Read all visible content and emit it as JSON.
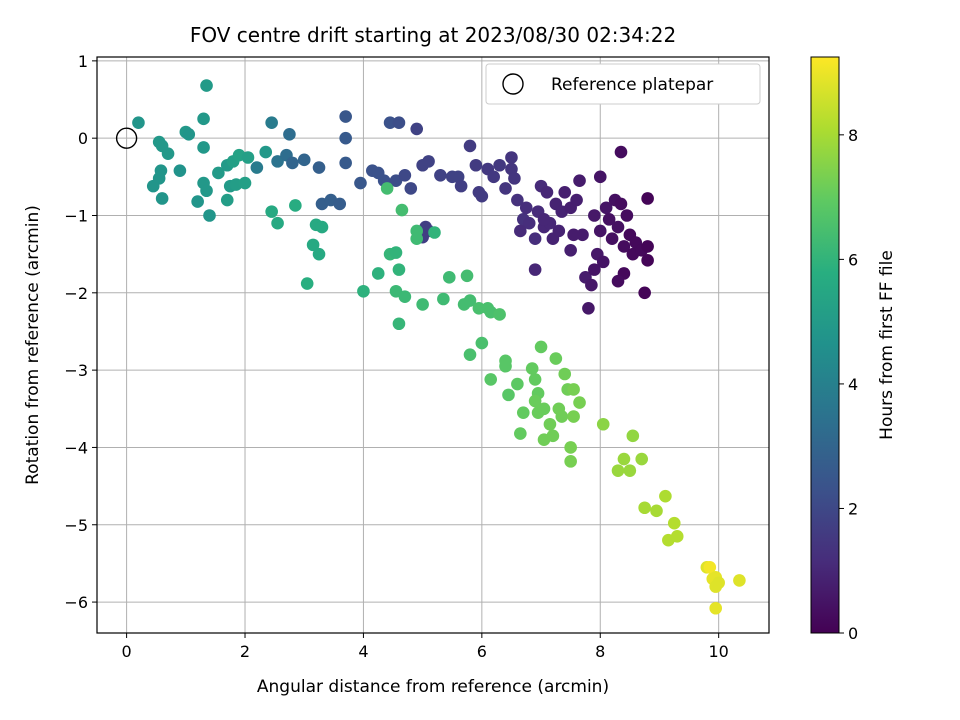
{
  "chart_data": {
    "type": "scatter",
    "title": "FOV centre drift starting at 2023/08/30 02:34:22",
    "xlabel": "Angular distance from reference (arcmin)",
    "ylabel": "Rotation from reference (arcmin)",
    "colorbar_label": "Hours from first FF file",
    "colormap": "viridis",
    "xlim": [
      -0.5,
      10.85
    ],
    "ylim": [
      -6.4,
      1.05
    ],
    "xticks": [
      0,
      2,
      4,
      6,
      8,
      10
    ],
    "yticks": [
      1,
      0,
      -1,
      -2,
      -3,
      -4,
      -5,
      -6
    ],
    "colorbar_range": [
      0,
      9.25
    ],
    "colorbar_ticks": [
      0,
      2,
      4,
      6,
      8
    ],
    "grid": true,
    "legend": {
      "placement": "top-right",
      "entries": [
        "Reference platepar"
      ]
    },
    "reference_point": {
      "x": 0,
      "y": 0,
      "label": "Reference platepar"
    },
    "points": [
      {
        "x": 0.2,
        "y": 0.2,
        "h": 4.8
      },
      {
        "x": 0.55,
        "y": -0.05,
        "h": 4.9
      },
      {
        "x": 0.6,
        "y": -0.1,
        "h": 4.9
      },
      {
        "x": 0.7,
        "y": -0.2,
        "h": 4.9
      },
      {
        "x": 0.58,
        "y": -0.42,
        "h": 4.8
      },
      {
        "x": 0.55,
        "y": -0.52,
        "h": 4.8
      },
      {
        "x": 0.45,
        "y": -0.62,
        "h": 4.8
      },
      {
        "x": 0.6,
        "y": -0.78,
        "h": 4.8
      },
      {
        "x": 0.9,
        "y": -0.42,
        "h": 4.7
      },
      {
        "x": 1.0,
        "y": 0.08,
        "h": 4.9
      },
      {
        "x": 1.05,
        "y": 0.05,
        "h": 4.8
      },
      {
        "x": 1.3,
        "y": 0.25,
        "h": 4.9
      },
      {
        "x": 1.35,
        "y": 0.68,
        "h": 5.0
      },
      {
        "x": 1.3,
        "y": -0.12,
        "h": 4.9
      },
      {
        "x": 1.3,
        "y": -0.58,
        "h": 4.9
      },
      {
        "x": 1.35,
        "y": -0.68,
        "h": 4.9
      },
      {
        "x": 1.2,
        "y": -0.82,
        "h": 4.8
      },
      {
        "x": 1.4,
        "y": -1.0,
        "h": 4.8
      },
      {
        "x": 1.55,
        "y": -0.45,
        "h": 5.0
      },
      {
        "x": 1.7,
        "y": -0.35,
        "h": 5.0
      },
      {
        "x": 1.75,
        "y": -0.62,
        "h": 5.0
      },
      {
        "x": 1.7,
        "y": -0.8,
        "h": 5.1
      },
      {
        "x": 1.85,
        "y": -0.6,
        "h": 5.1
      },
      {
        "x": 1.8,
        "y": -0.3,
        "h": 5.2
      },
      {
        "x": 1.9,
        "y": -0.22,
        "h": 5.3
      },
      {
        "x": 2.0,
        "y": -0.58,
        "h": 5.2
      },
      {
        "x": 2.05,
        "y": -0.25,
        "h": 5.2
      },
      {
        "x": 2.2,
        "y": -0.38,
        "h": 3.8
      },
      {
        "x": 2.45,
        "y": 0.2,
        "h": 3.8
      },
      {
        "x": 2.55,
        "y": -0.3,
        "h": 3.5
      },
      {
        "x": 2.7,
        "y": -0.22,
        "h": 3.3
      },
      {
        "x": 2.75,
        "y": 0.05,
        "h": 3.3
      },
      {
        "x": 2.8,
        "y": -0.32,
        "h": 3.0
      },
      {
        "x": 3.0,
        "y": -0.28,
        "h": 3.0
      },
      {
        "x": 3.25,
        "y": -0.38,
        "h": 2.8
      },
      {
        "x": 3.3,
        "y": -0.85,
        "h": 2.8
      },
      {
        "x": 3.45,
        "y": -0.8,
        "h": 2.8
      },
      {
        "x": 3.6,
        "y": -0.85,
        "h": 2.7
      },
      {
        "x": 3.7,
        "y": -0.32,
        "h": 2.6
      },
      {
        "x": 3.7,
        "y": 0.0,
        "h": 2.6
      },
      {
        "x": 3.7,
        "y": 0.28,
        "h": 2.5
      },
      {
        "x": 3.95,
        "y": -0.58,
        "h": 2.5
      },
      {
        "x": 4.15,
        "y": -0.42,
        "h": 2.3
      },
      {
        "x": 4.25,
        "y": -0.45,
        "h": 2.3
      },
      {
        "x": 4.35,
        "y": -0.55,
        "h": 2.3
      },
      {
        "x": 4.45,
        "y": 0.2,
        "h": 2.3
      },
      {
        "x": 4.6,
        "y": 0.2,
        "h": 2.2
      },
      {
        "x": 4.55,
        "y": -0.55,
        "h": 2.2
      },
      {
        "x": 4.7,
        "y": -0.48,
        "h": 2.0
      },
      {
        "x": 4.8,
        "y": -0.65,
        "h": 2.0
      },
      {
        "x": 4.9,
        "y": 0.12,
        "h": 1.8
      },
      {
        "x": 5.0,
        "y": -0.35,
        "h": 1.8
      },
      {
        "x": 5.1,
        "y": -0.3,
        "h": 1.8
      },
      {
        "x": 5.05,
        "y": -1.15,
        "h": 1.7
      },
      {
        "x": 5.1,
        "y": -1.2,
        "h": 1.7
      },
      {
        "x": 5.0,
        "y": -1.28,
        "h": 1.7
      },
      {
        "x": 5.3,
        "y": -0.48,
        "h": 1.8
      },
      {
        "x": 5.5,
        "y": -0.5,
        "h": 1.8
      },
      {
        "x": 5.6,
        "y": -0.5,
        "h": 1.8
      },
      {
        "x": 5.65,
        "y": -0.62,
        "h": 1.7
      },
      {
        "x": 5.8,
        "y": -0.1,
        "h": 1.6
      },
      {
        "x": 5.9,
        "y": -0.35,
        "h": 1.6
      },
      {
        "x": 5.95,
        "y": -0.7,
        "h": 1.6
      },
      {
        "x": 6.0,
        "y": -0.75,
        "h": 1.6
      },
      {
        "x": 6.1,
        "y": -0.4,
        "h": 1.5
      },
      {
        "x": 6.2,
        "y": -0.5,
        "h": 1.5
      },
      {
        "x": 6.3,
        "y": -0.35,
        "h": 1.5
      },
      {
        "x": 6.4,
        "y": -0.65,
        "h": 1.4
      },
      {
        "x": 6.5,
        "y": -0.4,
        "h": 1.4
      },
      {
        "x": 6.55,
        "y": -0.52,
        "h": 1.4
      },
      {
        "x": 6.6,
        "y": -0.8,
        "h": 1.3
      },
      {
        "x": 6.7,
        "y": -1.05,
        "h": 1.3
      },
      {
        "x": 6.8,
        "y": -1.1,
        "h": 1.2
      },
      {
        "x": 6.9,
        "y": -1.3,
        "h": 1.2
      },
      {
        "x": 6.95,
        "y": -0.95,
        "h": 1.1
      },
      {
        "x": 7.0,
        "y": -0.62,
        "h": 1.1
      },
      {
        "x": 7.05,
        "y": -1.15,
        "h": 1.0
      },
      {
        "x": 7.1,
        "y": -0.7,
        "h": 1.0
      },
      {
        "x": 7.15,
        "y": -1.1,
        "h": 1.0
      },
      {
        "x": 7.2,
        "y": -1.3,
        "h": 0.9
      },
      {
        "x": 7.25,
        "y": -0.85,
        "h": 0.9
      },
      {
        "x": 6.5,
        "y": -0.25,
        "h": 1.4
      },
      {
        "x": 6.65,
        "y": -1.2,
        "h": 1.1
      },
      {
        "x": 6.9,
        "y": -1.7,
        "h": 1.0
      },
      {
        "x": 7.3,
        "y": -1.2,
        "h": 0.9
      },
      {
        "x": 7.35,
        "y": -0.95,
        "h": 0.9
      },
      {
        "x": 7.4,
        "y": -0.7,
        "h": 0.8
      },
      {
        "x": 7.5,
        "y": -0.9,
        "h": 0.8
      },
      {
        "x": 7.5,
        "y": -1.45,
        "h": 0.8
      },
      {
        "x": 7.6,
        "y": -0.8,
        "h": 0.8
      },
      {
        "x": 7.65,
        "y": -0.55,
        "h": 0.7
      },
      {
        "x": 7.7,
        "y": -1.25,
        "h": 0.7
      },
      {
        "x": 7.75,
        "y": -1.8,
        "h": 0.7
      },
      {
        "x": 7.8,
        "y": -2.2,
        "h": 0.6
      },
      {
        "x": 7.85,
        "y": -1.9,
        "h": 0.6
      },
      {
        "x": 7.9,
        "y": -1.0,
        "h": 0.6
      },
      {
        "x": 7.95,
        "y": -1.5,
        "h": 0.6
      },
      {
        "x": 8.0,
        "y": -1.2,
        "h": 0.5
      },
      {
        "x": 8.0,
        "y": -0.5,
        "h": 0.5
      },
      {
        "x": 8.05,
        "y": -1.6,
        "h": 0.5
      },
      {
        "x": 8.1,
        "y": -0.9,
        "h": 0.5
      },
      {
        "x": 8.15,
        "y": -1.05,
        "h": 0.4
      },
      {
        "x": 8.2,
        "y": -1.3,
        "h": 0.4
      },
      {
        "x": 8.25,
        "y": -0.8,
        "h": 0.4
      },
      {
        "x": 8.3,
        "y": -1.15,
        "h": 0.4
      },
      {
        "x": 8.35,
        "y": -0.85,
        "h": 0.3
      },
      {
        "x": 8.35,
        "y": -0.18,
        "h": 0.3
      },
      {
        "x": 8.4,
        "y": -1.4,
        "h": 0.3
      },
      {
        "x": 8.45,
        "y": -1.0,
        "h": 0.3
      },
      {
        "x": 8.5,
        "y": -1.25,
        "h": 0.2
      },
      {
        "x": 8.55,
        "y": -1.5,
        "h": 0.2
      },
      {
        "x": 8.6,
        "y": -1.35,
        "h": 0.2
      },
      {
        "x": 8.7,
        "y": -1.45,
        "h": 0.2
      },
      {
        "x": 8.75,
        "y": -2.0,
        "h": 0.1
      },
      {
        "x": 8.8,
        "y": -0.78,
        "h": 0.1
      },
      {
        "x": 8.8,
        "y": -1.4,
        "h": 0.1
      },
      {
        "x": 8.8,
        "y": -1.58,
        "h": 0.1
      },
      {
        "x": 8.4,
        "y": -1.75,
        "h": 0.2
      },
      {
        "x": 8.3,
        "y": -1.85,
        "h": 0.3
      },
      {
        "x": 7.9,
        "y": -1.7,
        "h": 0.5
      },
      {
        "x": 7.55,
        "y": -1.25,
        "h": 0.7
      },
      {
        "x": 7.05,
        "y": -1.05,
        "h": 1.0
      },
      {
        "x": 6.75,
        "y": -0.9,
        "h": 1.2
      },
      {
        "x": 2.35,
        "y": -0.18,
        "h": 4.9
      },
      {
        "x": 2.45,
        "y": -0.95,
        "h": 5.6
      },
      {
        "x": 2.55,
        "y": -1.1,
        "h": 5.6
      },
      {
        "x": 2.85,
        "y": -0.87,
        "h": 5.7
      },
      {
        "x": 3.05,
        "y": -1.88,
        "h": 5.8
      },
      {
        "x": 3.15,
        "y": -1.38,
        "h": 5.6
      },
      {
        "x": 3.2,
        "y": -1.12,
        "h": 5.6
      },
      {
        "x": 3.25,
        "y": -1.5,
        "h": 5.6
      },
      {
        "x": 3.3,
        "y": -1.15,
        "h": 5.6
      },
      {
        "x": 4.0,
        "y": -1.98,
        "h": 5.9
      },
      {
        "x": 4.25,
        "y": -1.75,
        "h": 5.9
      },
      {
        "x": 4.4,
        "y": -0.65,
        "h": 6.4
      },
      {
        "x": 4.45,
        "y": -1.5,
        "h": 6.1
      },
      {
        "x": 4.55,
        "y": -1.48,
        "h": 6.0
      },
      {
        "x": 4.55,
        "y": -1.98,
        "h": 6.2
      },
      {
        "x": 4.6,
        "y": -1.7,
        "h": 6.0
      },
      {
        "x": 4.6,
        "y": -2.4,
        "h": 6.1
      },
      {
        "x": 4.65,
        "y": -0.93,
        "h": 6.4
      },
      {
        "x": 4.7,
        "y": -2.05,
        "h": 6.2
      },
      {
        "x": 4.9,
        "y": -1.2,
        "h": 6.3
      },
      {
        "x": 4.9,
        "y": -1.3,
        "h": 6.3
      },
      {
        "x": 5.0,
        "y": -2.15,
        "h": 6.3
      },
      {
        "x": 5.2,
        "y": -1.22,
        "h": 6.0
      },
      {
        "x": 5.35,
        "y": -2.08,
        "h": 6.3
      },
      {
        "x": 5.45,
        "y": -1.8,
        "h": 6.3
      },
      {
        "x": 5.7,
        "y": -2.15,
        "h": 6.4
      },
      {
        "x": 5.75,
        "y": -1.78,
        "h": 6.4
      },
      {
        "x": 5.8,
        "y": -2.1,
        "h": 6.4
      },
      {
        "x": 5.8,
        "y": -2.8,
        "h": 6.5
      },
      {
        "x": 5.95,
        "y": -2.2,
        "h": 6.5
      },
      {
        "x": 6.0,
        "y": -2.65,
        "h": 6.5
      },
      {
        "x": 6.1,
        "y": -2.2,
        "h": 6.5
      },
      {
        "x": 6.15,
        "y": -2.25,
        "h": 6.5
      },
      {
        "x": 6.15,
        "y": -3.12,
        "h": 6.8
      },
      {
        "x": 6.3,
        "y": -2.28,
        "h": 6.6
      },
      {
        "x": 6.4,
        "y": -2.95,
        "h": 6.8
      },
      {
        "x": 6.4,
        "y": -2.88,
        "h": 6.8
      },
      {
        "x": 6.45,
        "y": -3.32,
        "h": 6.8
      },
      {
        "x": 6.6,
        "y": -3.18,
        "h": 6.9
      },
      {
        "x": 6.65,
        "y": -3.82,
        "h": 7.0
      },
      {
        "x": 6.7,
        "y": -3.55,
        "h": 7.0
      },
      {
        "x": 6.85,
        "y": -2.98,
        "h": 7.0
      },
      {
        "x": 6.9,
        "y": -3.12,
        "h": 7.0
      },
      {
        "x": 6.95,
        "y": -3.3,
        "h": 7.0
      },
      {
        "x": 6.9,
        "y": -3.4,
        "h": 7.1
      },
      {
        "x": 6.95,
        "y": -3.55,
        "h": 7.1
      },
      {
        "x": 7.0,
        "y": -2.7,
        "h": 7.0
      },
      {
        "x": 7.05,
        "y": -3.5,
        "h": 7.1
      },
      {
        "x": 7.05,
        "y": -3.9,
        "h": 7.2
      },
      {
        "x": 7.15,
        "y": -3.7,
        "h": 7.2
      },
      {
        "x": 7.2,
        "y": -3.85,
        "h": 7.2
      },
      {
        "x": 7.25,
        "y": -2.85,
        "h": 7.1
      },
      {
        "x": 7.3,
        "y": -3.5,
        "h": 7.2
      },
      {
        "x": 7.35,
        "y": -3.6,
        "h": 7.2
      },
      {
        "x": 7.4,
        "y": -3.05,
        "h": 7.2
      },
      {
        "x": 7.45,
        "y": -3.25,
        "h": 7.2
      },
      {
        "x": 7.5,
        "y": -4.0,
        "h": 7.3
      },
      {
        "x": 7.5,
        "y": -4.18,
        "h": 7.3
      },
      {
        "x": 7.55,
        "y": -3.25,
        "h": 7.3
      },
      {
        "x": 7.55,
        "y": -3.6,
        "h": 7.3
      },
      {
        "x": 7.65,
        "y": -3.42,
        "h": 7.3
      },
      {
        "x": 8.05,
        "y": -3.7,
        "h": 7.6
      },
      {
        "x": 8.3,
        "y": -4.3,
        "h": 7.8
      },
      {
        "x": 8.4,
        "y": -4.15,
        "h": 7.8
      },
      {
        "x": 8.5,
        "y": -4.3,
        "h": 7.8
      },
      {
        "x": 8.55,
        "y": -3.85,
        "h": 7.7
      },
      {
        "x": 8.7,
        "y": -4.15,
        "h": 7.8
      },
      {
        "x": 8.75,
        "y": -4.78,
        "h": 8.0
      },
      {
        "x": 8.95,
        "y": -4.82,
        "h": 8.0
      },
      {
        "x": 9.1,
        "y": -4.63,
        "h": 8.1
      },
      {
        "x": 9.15,
        "y": -5.2,
        "h": 8.2
      },
      {
        "x": 9.25,
        "y": -4.98,
        "h": 8.2
      },
      {
        "x": 9.3,
        "y": -5.15,
        "h": 8.2
      },
      {
        "x": 9.8,
        "y": -5.55,
        "h": 8.8
      },
      {
        "x": 9.85,
        "y": -5.55,
        "h": 9.1
      },
      {
        "x": 9.9,
        "y": -5.7,
        "h": 8.9
      },
      {
        "x": 9.95,
        "y": -5.68,
        "h": 8.9
      },
      {
        "x": 9.95,
        "y": -5.8,
        "h": 8.8
      },
      {
        "x": 10.0,
        "y": -5.75,
        "h": 8.8
      },
      {
        "x": 9.95,
        "y": -6.08,
        "h": 8.9
      },
      {
        "x": 10.35,
        "y": -5.72,
        "h": 8.8
      }
    ]
  }
}
